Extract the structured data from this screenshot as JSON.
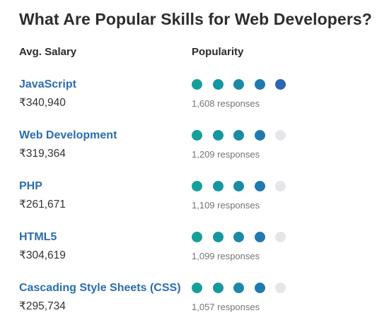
{
  "title": "What Are Popular Skills for Web Developers?",
  "headers": {
    "salary": "Avg. Salary",
    "popularity": "Popularity"
  },
  "colors": {
    "skill_link": "#2b6db1",
    "dot_empty": "#e6e6ea",
    "dot_scale": [
      "#17a09a",
      "#16979f",
      "#1b8aa6",
      "#217aaf",
      "#2b65b4"
    ]
  },
  "chart_data": {
    "type": "table",
    "title": "What Are Popular Skills for Web Developers?",
    "columns": [
      "Avg. Salary",
      "Popularity"
    ],
    "max_dots": 5,
    "rows": [
      {
        "skill": "JavaScript",
        "salary": "₹340,940",
        "popularity_dots": 5,
        "responses": "1,608 responses"
      },
      {
        "skill": "Web Development",
        "salary": "₹319,364",
        "popularity_dots": 4,
        "responses": "1,209 responses"
      },
      {
        "skill": "PHP",
        "salary": "₹261,671",
        "popularity_dots": 4,
        "responses": "1,109 responses"
      },
      {
        "skill": "HTML5",
        "salary": "₹304,619",
        "popularity_dots": 4,
        "responses": "1,099 responses"
      },
      {
        "skill": "Cascading Style Sheets (CSS)",
        "salary": "₹295,734",
        "popularity_dots": 4,
        "responses": "1,057 responses"
      }
    ]
  }
}
